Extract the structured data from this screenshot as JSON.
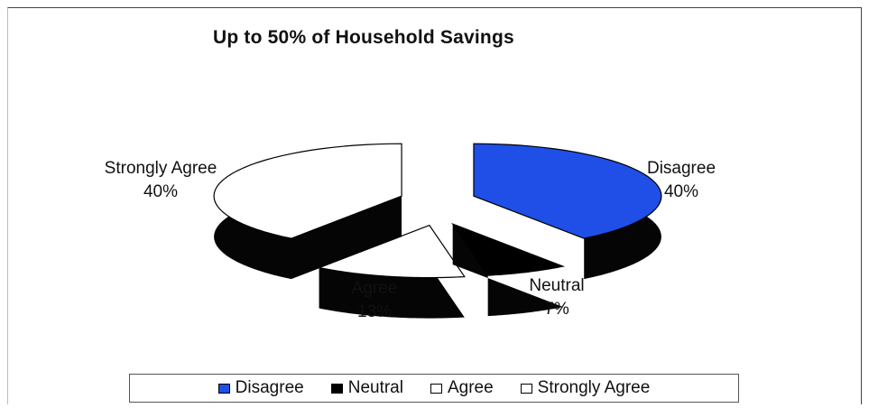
{
  "chart_data": {
    "type": "pie",
    "title": "Up to 50% of Household Savings",
    "slices": [
      {
        "name": "Disagree",
        "value": 40,
        "label": "40%",
        "color": "#1f4fe6"
      },
      {
        "name": "Neutral",
        "value": 7,
        "label": "7%",
        "color": "#000000"
      },
      {
        "name": "Agree",
        "value": 13,
        "label": "13%",
        "color": "#ffffff"
      },
      {
        "name": "Strongly Agree",
        "value": 40,
        "label": "40%",
        "color": "#ffffff"
      }
    ],
    "legend_placement": "bottom",
    "three_d": true,
    "exploded": true
  }
}
